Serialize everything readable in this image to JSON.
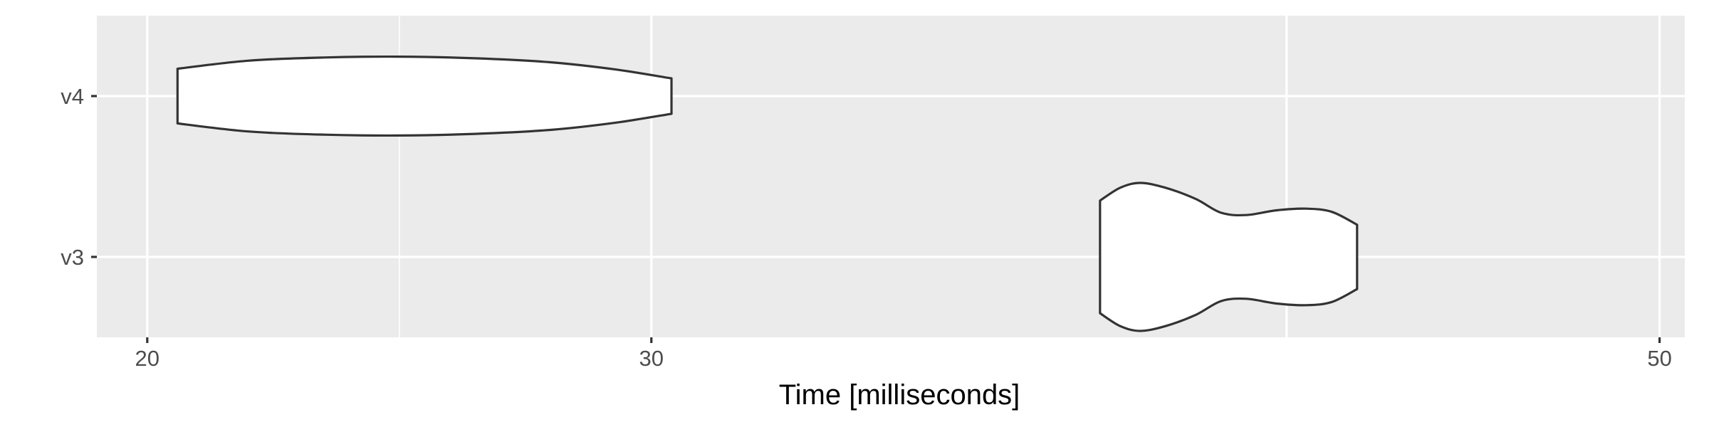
{
  "chart_data": {
    "type": "violin",
    "xlabel": "Time [milliseconds]",
    "ylabel": "",
    "title": "",
    "x_ticks": [
      20,
      30,
      50
    ],
    "x_major_gridlines": [
      20,
      30,
      42.6,
      50
    ],
    "x_minor_gridlines": [
      25
    ],
    "xlim": [
      19,
      50.5
    ],
    "categories": [
      "v3",
      "v4"
    ],
    "grid": true,
    "colors": {
      "panel_background": "#EBEBEB",
      "grid_line": "#FFFFFF",
      "violin_fill": "#FFFFFF",
      "violin_outline": "#333333",
      "tick_label": "#4D4D4D",
      "axis_title": "#000000"
    },
    "series": [
      {
        "category": "v4",
        "profile": [
          {
            "x": 20.6,
            "half_width": 0.34
          },
          {
            "x": 22.0,
            "half_width": 0.44
          },
          {
            "x": 23.5,
            "half_width": 0.48
          },
          {
            "x": 25.0,
            "half_width": 0.49
          },
          {
            "x": 26.5,
            "half_width": 0.47
          },
          {
            "x": 28.0,
            "half_width": 0.42
          },
          {
            "x": 29.3,
            "half_width": 0.33
          },
          {
            "x": 30.4,
            "half_width": 0.22
          }
        ]
      },
      {
        "category": "v3",
        "profile": [
          {
            "x": 38.9,
            "half_width": 0.7
          },
          {
            "x": 39.3,
            "half_width": 0.86
          },
          {
            "x": 39.7,
            "half_width": 0.92
          },
          {
            "x": 40.2,
            "half_width": 0.86
          },
          {
            "x": 40.8,
            "half_width": 0.72
          },
          {
            "x": 41.3,
            "half_width": 0.55
          },
          {
            "x": 41.8,
            "half_width": 0.52
          },
          {
            "x": 42.4,
            "half_width": 0.58
          },
          {
            "x": 43.0,
            "half_width": 0.6
          },
          {
            "x": 43.5,
            "half_width": 0.56
          },
          {
            "x": 44.0,
            "half_width": 0.4
          }
        ]
      }
    ]
  }
}
